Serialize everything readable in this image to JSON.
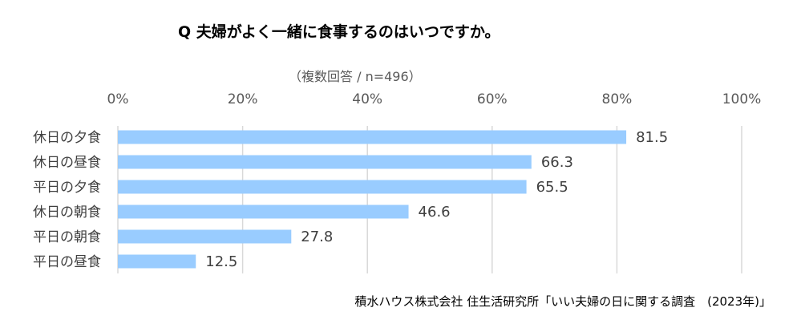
{
  "chart_data": {
    "type": "bar",
    "orientation": "horizontal",
    "title": "Q  夫婦がよく一緒に食事するのはいつですか。",
    "subtitle": "（複数回答 / n=496）",
    "categories": [
      "休日の夕食",
      "休日の昼食",
      "平日の夕食",
      "休日の朝食",
      "平日の朝食",
      "平日の昼食"
    ],
    "values": [
      81.5,
      66.3,
      65.5,
      46.6,
      27.8,
      12.5
    ],
    "value_labels": [
      "81.5",
      "66.3",
      "65.5",
      "46.6",
      "27.8",
      "12.5"
    ],
    "xlim": [
      0,
      100
    ],
    "xticks": [
      "0%",
      "20%",
      "40%",
      "60%",
      "80%",
      "100%"
    ],
    "xtick_values": [
      0,
      20,
      40,
      60,
      80,
      100
    ],
    "axis_position": "top",
    "grid": true,
    "bar_color": "#99CCFF",
    "grid_color": "#D9D9D9",
    "source": "積水ハウス株式会社 住生活研究所「いい夫婦の日に関する調査　(2023年)」"
  }
}
